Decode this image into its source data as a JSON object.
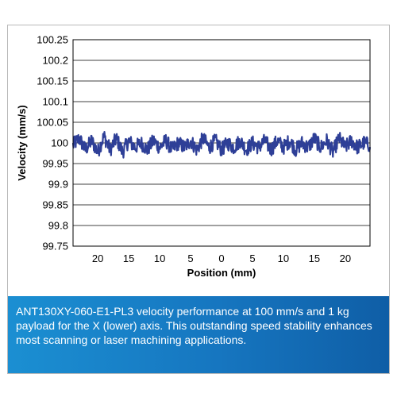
{
  "chart_data": {
    "type": "line",
    "title": "",
    "xlabel": "Position (mm)",
    "ylabel": "Velocity (mm/s)",
    "ylim": [
      99.75,
      100.25
    ],
    "xlim": [
      -24,
      24
    ],
    "y_ticks": [
      "100.25",
      "100.2",
      "100.15",
      "100.1",
      "100.05",
      "100",
      "99.95",
      "99.9",
      "99.85",
      "99.8",
      "99.75"
    ],
    "x_ticks": [
      {
        "value": -20,
        "label": "20"
      },
      {
        "value": -15,
        "label": "15"
      },
      {
        "value": -10,
        "label": "10"
      },
      {
        "value": -5,
        "label": "5"
      },
      {
        "value": 0,
        "label": "0"
      },
      {
        "value": 5,
        "label": "5"
      },
      {
        "value": 10,
        "label": "10"
      },
      {
        "value": 15,
        "label": "15"
      },
      {
        "value": 20,
        "label": "20"
      }
    ],
    "grid": "horizontal",
    "series": [
      {
        "color": "#2e3f97",
        "x": [
          -24,
          -23,
          -22,
          -21,
          -20,
          -19,
          -18,
          -17,
          -16,
          -15,
          -14,
          -13,
          -12,
          -11,
          -10,
          -9,
          -8,
          -7,
          -6,
          -5,
          -4,
          -3,
          -2,
          -1,
          0,
          1,
          2,
          3,
          4,
          5,
          6,
          7,
          8,
          9,
          10,
          11,
          12,
          13,
          14,
          15,
          16,
          17,
          18,
          19,
          20,
          21,
          22,
          23,
          24
        ],
        "y": [
          99.99,
          100.02,
          99.97,
          100.01,
          99.96,
          100.03,
          99.97,
          100.02,
          99.96,
          100.01,
          99.98,
          100.0,
          99.97,
          100.01,
          99.98,
          100.01,
          99.97,
          100.0,
          99.98,
          100.01,
          99.97,
          100.02,
          99.98,
          100.01,
          99.97,
          100.0,
          99.98,
          100.01,
          99.97,
          100.0,
          99.98,
          100.01,
          99.97,
          100.01,
          99.98,
          100.01,
          99.97,
          100.0,
          99.98,
          100.02,
          99.98,
          100.01,
          99.96,
          100.02,
          99.98,
          100.01,
          99.98,
          100.0,
          99.99
        ]
      }
    ]
  },
  "caption": {
    "text": "ANT130XY-060-E1-PL3 velocity performance at 100 mm/s and 1 kg payload for the X (lower) axis. This outstanding speed stability enhances most scanning or laser machining applications."
  }
}
